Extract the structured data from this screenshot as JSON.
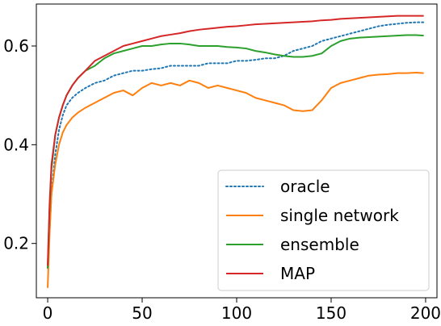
{
  "chart_data": {
    "type": "line",
    "title": "",
    "xlabel": "",
    "ylabel": "",
    "xlim": [
      -6,
      206
    ],
    "ylim": [
      0.09,
      0.685
    ],
    "xticks": [
      0,
      50,
      100,
      150,
      200
    ],
    "yticks": [
      0.2,
      0.4,
      0.6
    ],
    "xtick_labels": [
      "0",
      "50",
      "100",
      "150",
      "200"
    ],
    "ytick_labels": [
      "0.2",
      "0.4",
      "0.6"
    ],
    "grid": false,
    "legend_position": "lower-right",
    "series": [
      {
        "name": "oracle",
        "color": "#1f77b4",
        "style": "dotted",
        "x": [
          0,
          2,
          4,
          6,
          8,
          10,
          13,
          16,
          20,
          25,
          30,
          35,
          40,
          45,
          50,
          55,
          60,
          65,
          70,
          75,
          80,
          85,
          90,
          95,
          100,
          105,
          110,
          115,
          120,
          125,
          130,
          135,
          140,
          145,
          150,
          155,
          160,
          165,
          170,
          175,
          180,
          185,
          190,
          195,
          199
        ],
        "y": [
          0.15,
          0.3,
          0.38,
          0.43,
          0.46,
          0.48,
          0.495,
          0.505,
          0.515,
          0.525,
          0.53,
          0.54,
          0.545,
          0.55,
          0.55,
          0.553,
          0.555,
          0.56,
          0.56,
          0.56,
          0.56,
          0.565,
          0.565,
          0.565,
          0.57,
          0.57,
          0.572,
          0.575,
          0.575,
          0.58,
          0.59,
          0.595,
          0.6,
          0.61,
          0.615,
          0.62,
          0.625,
          0.63,
          0.635,
          0.64,
          0.643,
          0.645,
          0.647,
          0.648,
          0.648
        ]
      },
      {
        "name": "single network",
        "color": "#ff7f0e",
        "style": "solid",
        "x": [
          0,
          1,
          2,
          4,
          6,
          8,
          10,
          13,
          16,
          20,
          25,
          30,
          35,
          40,
          45,
          50,
          55,
          60,
          65,
          70,
          75,
          80,
          85,
          90,
          95,
          100,
          105,
          110,
          115,
          120,
          125,
          130,
          135,
          140,
          145,
          150,
          155,
          160,
          165,
          170,
          175,
          180,
          185,
          190,
          195,
          199
        ],
        "y": [
          0.11,
          0.22,
          0.3,
          0.36,
          0.4,
          0.425,
          0.44,
          0.455,
          0.465,
          0.475,
          0.485,
          0.495,
          0.505,
          0.51,
          0.5,
          0.515,
          0.525,
          0.52,
          0.525,
          0.52,
          0.53,
          0.525,
          0.515,
          0.52,
          0.515,
          0.51,
          0.505,
          0.495,
          0.49,
          0.485,
          0.48,
          0.47,
          0.468,
          0.47,
          0.49,
          0.515,
          0.525,
          0.53,
          0.535,
          0.54,
          0.542,
          0.543,
          0.545,
          0.545,
          0.546,
          0.545
        ]
      },
      {
        "name": "ensemble",
        "color": "#2ca02c",
        "style": "solid",
        "x": [
          0,
          1,
          2,
          4,
          6,
          8,
          10,
          13,
          16,
          20,
          25,
          30,
          35,
          40,
          45,
          50,
          55,
          60,
          65,
          70,
          75,
          80,
          85,
          90,
          95,
          100,
          105,
          110,
          115,
          120,
          125,
          130,
          135,
          140,
          145,
          150,
          155,
          160,
          165,
          170,
          175,
          180,
          185,
          190,
          195,
          199
        ],
        "y": [
          0.15,
          0.27,
          0.35,
          0.42,
          0.455,
          0.48,
          0.5,
          0.52,
          0.535,
          0.55,
          0.56,
          0.575,
          0.585,
          0.59,
          0.595,
          0.6,
          0.6,
          0.603,
          0.605,
          0.605,
          0.603,
          0.6,
          0.6,
          0.6,
          0.598,
          0.597,
          0.595,
          0.59,
          0.587,
          0.583,
          0.58,
          0.578,
          0.578,
          0.58,
          0.585,
          0.6,
          0.61,
          0.615,
          0.617,
          0.618,
          0.619,
          0.62,
          0.621,
          0.622,
          0.622,
          0.621
        ]
      },
      {
        "name": "MAP",
        "color": "#d62728",
        "style": "solid",
        "x": [
          0,
          1,
          2,
          4,
          6,
          8,
          10,
          13,
          16,
          20,
          25,
          30,
          35,
          40,
          45,
          50,
          55,
          60,
          65,
          70,
          75,
          80,
          85,
          90,
          95,
          100,
          105,
          110,
          115,
          120,
          125,
          130,
          135,
          140,
          145,
          150,
          155,
          160,
          165,
          170,
          175,
          180,
          185,
          190,
          195,
          199
        ],
        "y": [
          0.155,
          0.28,
          0.36,
          0.42,
          0.455,
          0.48,
          0.5,
          0.52,
          0.535,
          0.55,
          0.57,
          0.58,
          0.59,
          0.6,
          0.605,
          0.61,
          0.615,
          0.62,
          0.623,
          0.626,
          0.63,
          0.633,
          0.635,
          0.637,
          0.639,
          0.64,
          0.642,
          0.644,
          0.645,
          0.646,
          0.647,
          0.648,
          0.649,
          0.65,
          0.652,
          0.653,
          0.655,
          0.656,
          0.657,
          0.658,
          0.659,
          0.66,
          0.661,
          0.661,
          0.661,
          0.661
        ]
      }
    ]
  }
}
